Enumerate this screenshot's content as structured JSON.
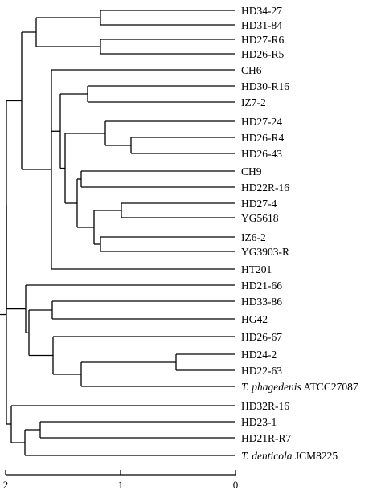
{
  "dendrogram": {
    "leaves": [
      {
        "id": "l0",
        "parts": [
          {
            "t": "HD34-27"
          }
        ]
      },
      {
        "id": "l1",
        "parts": [
          {
            "t": "HD31-84"
          }
        ]
      },
      {
        "id": "l2",
        "parts": [
          {
            "t": "HD27-R6"
          }
        ]
      },
      {
        "id": "l3",
        "parts": [
          {
            "t": "HD26-R5"
          }
        ]
      },
      {
        "id": "l4",
        "parts": [
          {
            "t": "CH6"
          }
        ]
      },
      {
        "id": "l5",
        "parts": [
          {
            "t": "HD30-R16"
          }
        ]
      },
      {
        "id": "l6",
        "parts": [
          {
            "t": "IZ7-2"
          }
        ]
      },
      {
        "id": "l7",
        "parts": [
          {
            "t": "HD27-24"
          }
        ]
      },
      {
        "id": "l8",
        "parts": [
          {
            "t": "HD26-R4"
          }
        ]
      },
      {
        "id": "l9",
        "parts": [
          {
            "t": "HD26-43"
          }
        ]
      },
      {
        "id": "l10",
        "parts": [
          {
            "t": "CH9"
          }
        ]
      },
      {
        "id": "l11",
        "parts": [
          {
            "t": "HD22R-16"
          }
        ]
      },
      {
        "id": "l12",
        "parts": [
          {
            "t": "HD27-4"
          }
        ]
      },
      {
        "id": "l13",
        "parts": [
          {
            "t": "YG5618"
          }
        ]
      },
      {
        "id": "l14",
        "parts": [
          {
            "t": "IZ6-2"
          }
        ]
      },
      {
        "id": "l15",
        "parts": [
          {
            "t": "YG3903-R"
          }
        ]
      },
      {
        "id": "l16",
        "parts": [
          {
            "t": "HT201"
          }
        ]
      },
      {
        "id": "l17",
        "parts": [
          {
            "t": "HD21-66"
          }
        ]
      },
      {
        "id": "l18",
        "parts": [
          {
            "t": "HD33-86"
          }
        ]
      },
      {
        "id": "l19",
        "parts": [
          {
            "t": "HG42"
          }
        ]
      },
      {
        "id": "l20",
        "parts": [
          {
            "t": "HD26-67"
          }
        ]
      },
      {
        "id": "l21",
        "parts": [
          {
            "t": "HD24-2"
          }
        ]
      },
      {
        "id": "l22",
        "parts": [
          {
            "t": "HD22-63"
          }
        ]
      },
      {
        "id": "l23",
        "parts": [
          {
            "t": "T. phagedenis",
            "i": true
          },
          {
            "t": " ATCC27087"
          }
        ]
      },
      {
        "id": "l24",
        "parts": [
          {
            "t": "HD32R-16"
          }
        ]
      },
      {
        "id": "l25",
        "parts": [
          {
            "t": "HD23-1"
          }
        ]
      },
      {
        "id": "l26",
        "parts": [
          {
            "t": "HD21R-R7"
          }
        ]
      },
      {
        "id": "l27",
        "parts": [
          {
            "t": "T. denticola",
            "i": true
          },
          {
            "t": " JCM8225"
          }
        ]
      }
    ],
    "scale": {
      "ticks": [
        {
          "value": 2,
          "label": "2"
        },
        {
          "value": 1,
          "label": "1"
        },
        {
          "value": 0,
          "label": "0"
        }
      ]
    }
  }
}
